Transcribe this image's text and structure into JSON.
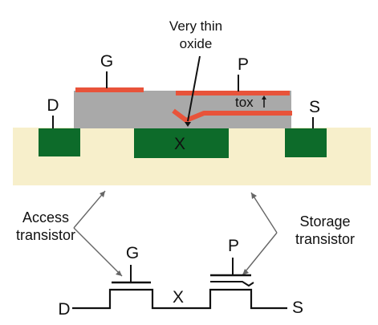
{
  "labels": {
    "very_thin_line1": "Very thin",
    "very_thin_line2": "oxide",
    "gate": "G",
    "program": "P",
    "drain": "D",
    "source": "S",
    "tox": "tox",
    "node_x": "X",
    "access_line1": "Access",
    "access_line2": "transistor",
    "storage_line1": "Storage",
    "storage_line2": "transistor",
    "sym_gate": "G",
    "sym_program": "P",
    "sym_node": "X",
    "sym_drain": "D",
    "sym_source": "S"
  },
  "colors": {
    "substrate": "#f7efcb",
    "diffusion": "#0d6b2a",
    "oxide": "#a9a9a9",
    "gate_metal": "#e8533a",
    "wire": "#111111"
  }
}
